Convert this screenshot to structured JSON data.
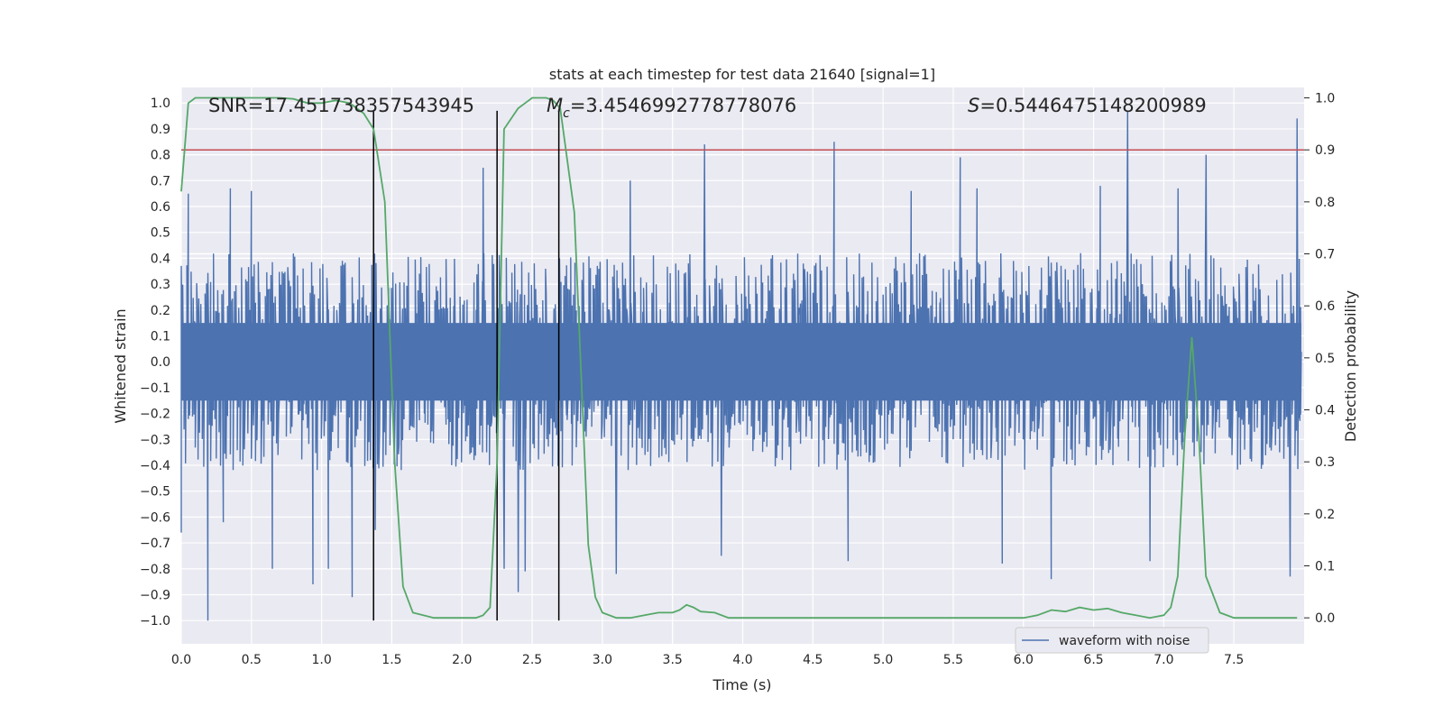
{
  "chart_data": {
    "type": "line",
    "title": "stats at each timestep for test data 21640 [signal=1]",
    "xlabel": "Time (s)",
    "ylabel_left": "Whitened strain",
    "ylabel_right": "Detection probability",
    "xlim": [
      0.0,
      8.0
    ],
    "ylim_left": [
      -1.09,
      1.06
    ],
    "ylim_right": [
      -0.05,
      1.02
    ],
    "x_ticks": [
      0.0,
      0.5,
      1.0,
      1.5,
      2.0,
      2.5,
      3.0,
      3.5,
      4.0,
      4.5,
      5.0,
      5.5,
      6.0,
      6.5,
      7.0,
      7.5
    ],
    "x_tick_labels": [
      "0.0",
      "0.5",
      "1.0",
      "1.5",
      "2.0",
      "2.5",
      "3.0",
      "3.5",
      "4.0",
      "4.5",
      "5.0",
      "5.5",
      "6.0",
      "6.5",
      "7.0",
      "7.5"
    ],
    "y_left_ticks": [
      1.0,
      0.9,
      0.8,
      0.7,
      0.6,
      0.5,
      0.4,
      0.3,
      0.2,
      0.1,
      0.0,
      -0.1,
      -0.2,
      -0.3,
      -0.4,
      -0.5,
      -0.6,
      -0.7,
      -0.8,
      -0.9,
      -1.0
    ],
    "y_left_tick_labels": [
      "1.0",
      "0.9",
      "0.8",
      "0.7",
      "0.6",
      "0.5",
      "0.4",
      "0.3",
      "0.2",
      "0.1",
      "0.0",
      "−0.1",
      "−0.2",
      "−0.3",
      "−0.4",
      "−0.5",
      "−0.6",
      "−0.7",
      "−0.8",
      "−0.9",
      "−1.0"
    ],
    "y_right_ticks": [
      1.0,
      0.9,
      0.8,
      0.7,
      0.6,
      0.5,
      0.4,
      0.3,
      0.2,
      0.1,
      0.0
    ],
    "y_right_tick_labels": [
      "1.0",
      "0.9",
      "0.8",
      "0.7",
      "0.6",
      "0.5",
      "0.4",
      "0.3",
      "0.2",
      "0.1",
      "0.0"
    ],
    "annotations": {
      "snr": "SNR=17.451738357543945",
      "mc_symbol": "M",
      "mc_sub": "c",
      "mc_value": "=3.4546992778778076",
      "s_symbol": "S",
      "s_value": "=0.5446475148200989"
    },
    "legend": {
      "label": "waveform with noise",
      "position": "lower-right"
    },
    "threshold_line": {
      "axis": "right",
      "value": 0.9,
      "color": "#c44e52"
    },
    "vertical_lines": [
      1.37,
      2.25,
      2.69
    ],
    "vertical_line_color": "#000000",
    "waveform": {
      "name": "waveform with noise",
      "axis": "left",
      "color": "#4c72b0",
      "x_range": [
        0.0,
        7.98
      ],
      "samples": 1600,
      "typical_peak": 0.45,
      "spikes": [
        {
          "x": 0.19,
          "y": -1.0
        },
        {
          "x": 0.3,
          "y": -0.62
        },
        {
          "x": 0.65,
          "y": -0.8
        },
        {
          "x": 0.94,
          "y": -0.86
        },
        {
          "x": 1.05,
          "y": -0.8
        },
        {
          "x": 1.22,
          "y": -0.91
        },
        {
          "x": 1.38,
          "y": -0.65
        },
        {
          "x": 2.3,
          "y": -0.8
        },
        {
          "x": 2.4,
          "y": -0.89
        },
        {
          "x": 2.45,
          "y": -0.81
        },
        {
          "x": 3.1,
          "y": -0.82
        },
        {
          "x": 3.73,
          "y": 0.84
        },
        {
          "x": 4.65,
          "y": 0.85
        },
        {
          "x": 5.55,
          "y": 0.79
        },
        {
          "x": 5.67,
          "y": 0.67
        },
        {
          "x": 6.2,
          "y": -0.84
        },
        {
          "x": 6.74,
          "y": 0.97
        },
        {
          "x": 7.3,
          "y": 0.8
        },
        {
          "x": 7.95,
          "y": 0.94
        },
        {
          "x": 7.9,
          "y": -0.83
        },
        {
          "x": 0.05,
          "y": 0.65
        },
        {
          "x": 0.35,
          "y": 0.67
        },
        {
          "x": 0.5,
          "y": 0.66
        },
        {
          "x": 2.15,
          "y": 0.75
        },
        {
          "x": 3.2,
          "y": 0.7
        },
        {
          "x": 5.2,
          "y": 0.66
        },
        {
          "x": 6.55,
          "y": 0.68
        },
        {
          "x": 7.1,
          "y": 0.67
        },
        {
          "x": 3.85,
          "y": -0.75
        },
        {
          "x": 4.75,
          "y": -0.77
        },
        {
          "x": 5.85,
          "y": -0.78
        },
        {
          "x": 6.9,
          "y": -0.77
        },
        {
          "x": 0.0,
          "y": -0.66
        }
      ]
    },
    "detection_probability": {
      "name": "detection probability",
      "axis": "right",
      "color": "#55a868",
      "x": [
        0.0,
        0.05,
        0.1,
        0.2,
        0.3,
        0.4,
        0.5,
        0.6,
        0.7,
        0.8,
        0.9,
        1.0,
        1.1,
        1.2,
        1.25,
        1.3,
        1.37,
        1.45,
        1.52,
        1.58,
        1.65,
        1.8,
        2.0,
        2.1,
        2.15,
        2.2,
        2.25,
        2.3,
        2.35,
        2.4,
        2.45,
        2.5,
        2.55,
        2.6,
        2.65,
        2.7,
        2.8,
        2.9,
        2.95,
        3.0,
        3.1,
        3.2,
        3.3,
        3.4,
        3.5,
        3.55,
        3.6,
        3.65,
        3.7,
        3.8,
        3.9,
        4.0,
        4.2,
        4.5,
        4.8,
        5.0,
        5.3,
        5.6,
        5.8,
        6.0,
        6.1,
        6.2,
        6.3,
        6.4,
        6.5,
        6.6,
        6.7,
        6.8,
        6.9,
        7.0,
        7.05,
        7.1,
        7.15,
        7.2,
        7.25,
        7.3,
        7.4,
        7.5,
        7.7,
        7.95
      ],
      "y": [
        0.82,
        0.99,
        1.0,
        1.0,
        1.0,
        1.0,
        1.0,
        1.0,
        1.0,
        0.998,
        0.99,
        0.99,
        0.995,
        0.99,
        0.98,
        0.97,
        0.94,
        0.8,
        0.3,
        0.06,
        0.01,
        0.0,
        0.0,
        0.0,
        0.005,
        0.02,
        0.3,
        0.94,
        0.96,
        0.98,
        0.99,
        1.0,
        1.0,
        1.0,
        0.995,
        0.98,
        0.78,
        0.14,
        0.04,
        0.01,
        0.0,
        0.0,
        0.005,
        0.01,
        0.01,
        0.015,
        0.025,
        0.02,
        0.012,
        0.01,
        0.0,
        0.0,
        0.0,
        0.0,
        0.0,
        0.0,
        0.0,
        0.0,
        0.0,
        0.0,
        0.005,
        0.015,
        0.012,
        0.02,
        0.015,
        0.018,
        0.01,
        0.005,
        0.0,
        0.005,
        0.02,
        0.08,
        0.35,
        0.54,
        0.35,
        0.08,
        0.01,
        0.0,
        0.0,
        0.0
      ]
    }
  }
}
